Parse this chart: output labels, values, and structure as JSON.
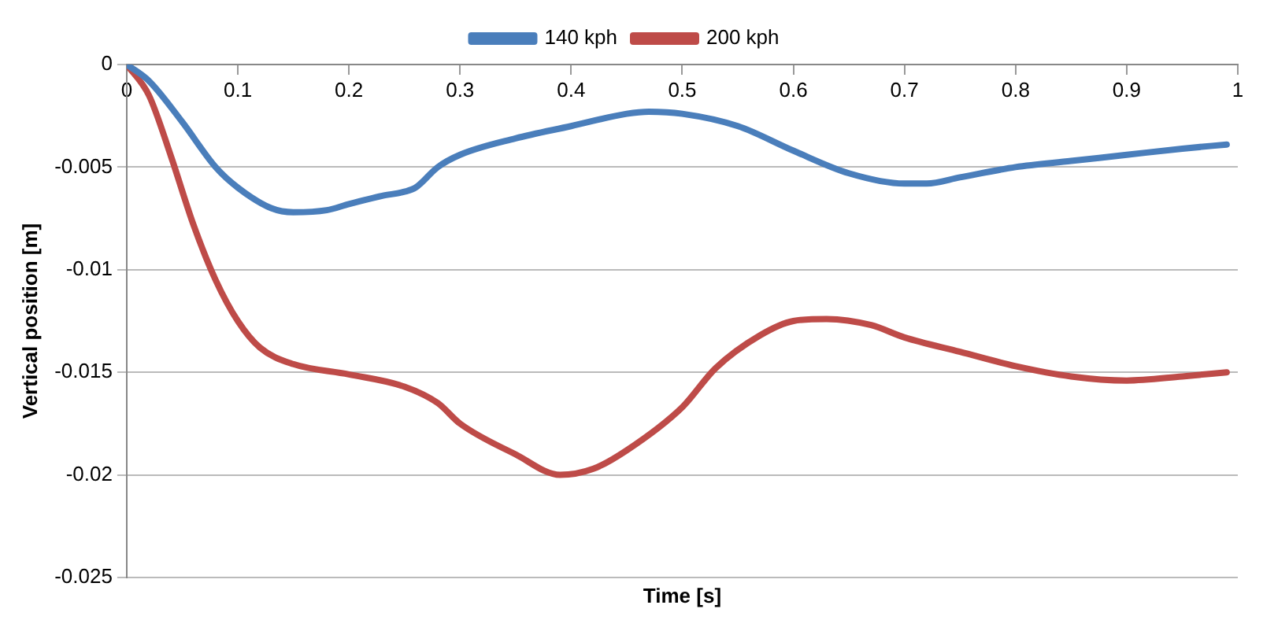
{
  "chart_data": {
    "type": "line",
    "xlabel": "Time [s]",
    "ylabel": "Vertical position [m]",
    "xlim": [
      0,
      1
    ],
    "xticks": [
      0,
      0.1,
      0.2,
      0.3,
      0.4,
      0.5,
      0.6,
      0.7,
      0.8,
      0.9,
      1
    ],
    "ylim": [
      -0.025,
      0
    ],
    "yticks": [
      -0.025,
      -0.02,
      -0.015,
      -0.01,
      -0.005,
      0
    ],
    "grid": "y",
    "legend": "top",
    "marker": "none",
    "line_style": "solid",
    "series": [
      {
        "name": "140 kph",
        "color": "#4a7ebb",
        "x": [
          0,
          0.02,
          0.05,
          0.08,
          0.1,
          0.13,
          0.15,
          0.18,
          0.2,
          0.23,
          0.25,
          0.26,
          0.28,
          0.3,
          0.35,
          0.4,
          0.45,
          0.47,
          0.5,
          0.55,
          0.6,
          0.65,
          0.7,
          0.72,
          0.75,
          0.8,
          0.85,
          0.9,
          0.95,
          0.99
        ],
        "values": [
          0,
          -0.0008,
          -0.0028,
          -0.005,
          -0.006,
          -0.007,
          -0.0072,
          -0.0071,
          -0.0068,
          -0.0064,
          -0.0062,
          -0.006,
          -0.005,
          -0.0044,
          -0.0036,
          -0.003,
          -0.0024,
          -0.0023,
          -0.0024,
          -0.003,
          -0.0042,
          -0.0053,
          -0.0058,
          -0.0058,
          -0.0055,
          -0.005,
          -0.0047,
          -0.0044,
          -0.0041,
          -0.0039
        ]
      },
      {
        "name": "200 kph",
        "color": "#be4b48",
        "x": [
          0,
          0.02,
          0.04,
          0.06,
          0.08,
          0.1,
          0.12,
          0.15,
          0.2,
          0.25,
          0.28,
          0.3,
          0.35,
          0.39,
          0.42,
          0.45,
          0.5,
          0.53,
          0.57,
          0.6,
          0.63,
          0.67,
          0.7,
          0.75,
          0.8,
          0.85,
          0.9,
          0.95,
          0.99
        ],
        "values": [
          0,
          -0.0015,
          -0.0045,
          -0.0078,
          -0.0105,
          -0.0125,
          -0.0138,
          -0.0146,
          -0.0151,
          -0.0157,
          -0.0165,
          -0.0175,
          -0.019,
          -0.02,
          -0.0197,
          -0.0188,
          -0.0167,
          -0.0148,
          -0.0132,
          -0.0125,
          -0.0124,
          -0.0127,
          -0.0133,
          -0.014,
          -0.0147,
          -0.0152,
          -0.0154,
          -0.0152,
          -0.015
        ]
      }
    ]
  }
}
